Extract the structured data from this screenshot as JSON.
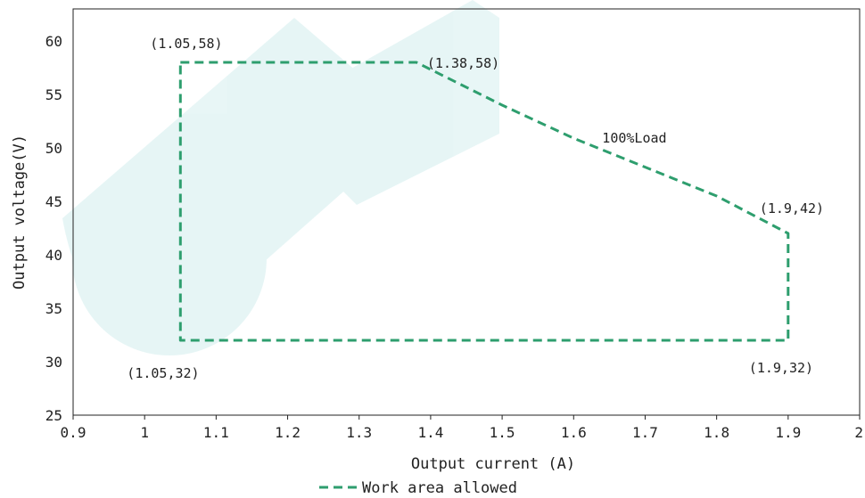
{
  "chart_data": {
    "type": "line",
    "xlabel": "Output current (A)",
    "ylabel": "Output voltage(V)",
    "xlim": [
      0.9,
      2
    ],
    "ylim": [
      25,
      63
    ],
    "x_ticks": [
      "0.9",
      "1",
      "1.1",
      "1.2",
      "1.3",
      "1.4",
      "1.5",
      "1.6",
      "1.7",
      "1.8",
      "1.9",
      "2"
    ],
    "x_tick_values": [
      0.9,
      1.0,
      1.1,
      1.2,
      1.3,
      1.4,
      1.5,
      1.6,
      1.7,
      1.8,
      1.9,
      2.0
    ],
    "y_ticks": [
      "25",
      "30",
      "35",
      "40",
      "45",
      "50",
      "55",
      "60"
    ],
    "y_tick_values": [
      25,
      30,
      35,
      40,
      45,
      50,
      55,
      60
    ],
    "grid": false,
    "legend_position": "bottom-center",
    "series": [
      {
        "name": "Work area allowed",
        "color": "#2e9e6e",
        "style": "dashed",
        "x": [
          1.05,
          1.38,
          1.5,
          1.6,
          1.7,
          1.8,
          1.9,
          1.9,
          1.05,
          1.05
        ],
        "y": [
          58,
          58,
          54.0,
          50.9,
          48.2,
          45.5,
          42,
          32,
          32,
          58
        ]
      }
    ],
    "annotations": [
      {
        "text": "(1.05,58)",
        "x": 1.05,
        "y": 58,
        "anchor": "upper-left"
      },
      {
        "text": "(1.38,58)",
        "x": 1.38,
        "y": 58,
        "anchor": "right"
      },
      {
        "text": "100%Load",
        "x": 1.64,
        "y": 50.5,
        "anchor": "right"
      },
      {
        "text": "(1.9,42)",
        "x": 1.9,
        "y": 42,
        "anchor": "upper"
      },
      {
        "text": "(1.05,32)",
        "x": 1.05,
        "y": 32,
        "anchor": "below"
      },
      {
        "text": "(1.9,32)",
        "x": 1.9,
        "y": 32,
        "anchor": "below"
      }
    ]
  }
}
